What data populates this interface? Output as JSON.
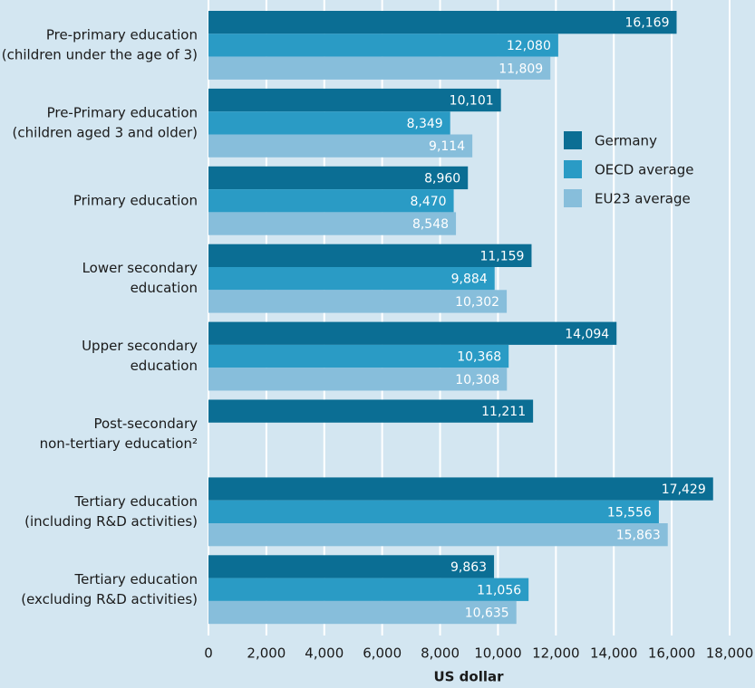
{
  "chart_data": {
    "type": "hbar",
    "xlabel": "US dollar",
    "categories": [
      [
        "Pre-primary education",
        "(children under the age of 3)"
      ],
      [
        "Pre-Primary education",
        "(children aged 3 and older)"
      ],
      [
        "Primary education"
      ],
      [
        "Lower secondary",
        "education"
      ],
      [
        "Upper secondary",
        "education"
      ],
      [
        "Post-secondary",
        "non-tertiary education²"
      ],
      [
        "Tertiary education",
        "(including R&D activities)"
      ],
      [
        "Tertiary education",
        "(excluding R&D activities)"
      ]
    ],
    "series": [
      {
        "name": "Germany",
        "color": "#0b6e94",
        "values": [
          16169,
          10101,
          8960,
          11159,
          14094,
          11211,
          17429,
          9863
        ],
        "value_labels": [
          "16,169",
          "10,101",
          "8,960",
          "11,159",
          "14,094",
          "11,211",
          "17,429",
          "9,863"
        ]
      },
      {
        "name": "OECD average",
        "color": "#2a9bc5",
        "values": [
          12080,
          8349,
          8470,
          9884,
          10368,
          null,
          15556,
          11056
        ],
        "value_labels": [
          "12,080",
          "8,349",
          "8,470",
          "9,884",
          "10,368",
          null,
          "15,556",
          "11,056"
        ]
      },
      {
        "name": "EU23 average",
        "color": "#87bedb",
        "values": [
          11809,
          9114,
          8548,
          10302,
          10308,
          null,
          15863,
          10635
        ],
        "value_labels": [
          "11,809",
          "9,114",
          "8,548",
          "10,302",
          "10,308",
          null,
          "15,863",
          "10,635"
        ]
      }
    ],
    "xlim": [
      0,
      18000
    ],
    "xticks": [
      0,
      {
        "value": 2000,
        "label": "2,000"
      },
      {
        "value": 4000,
        "label": "4,000"
      },
      {
        "value": 6000,
        "label": "6,000"
      },
      {
        "value": 8000,
        "label": "8,000"
      },
      {
        "value": 10000,
        "label": "10,000"
      },
      {
        "value": 12000,
        "label": "12,000"
      },
      {
        "value": 14000,
        "label": "14,000"
      },
      {
        "value": 16000,
        "label": "16,000"
      },
      {
        "value": 18000,
        "label": "18,000"
      }
    ],
    "grid": true
  }
}
